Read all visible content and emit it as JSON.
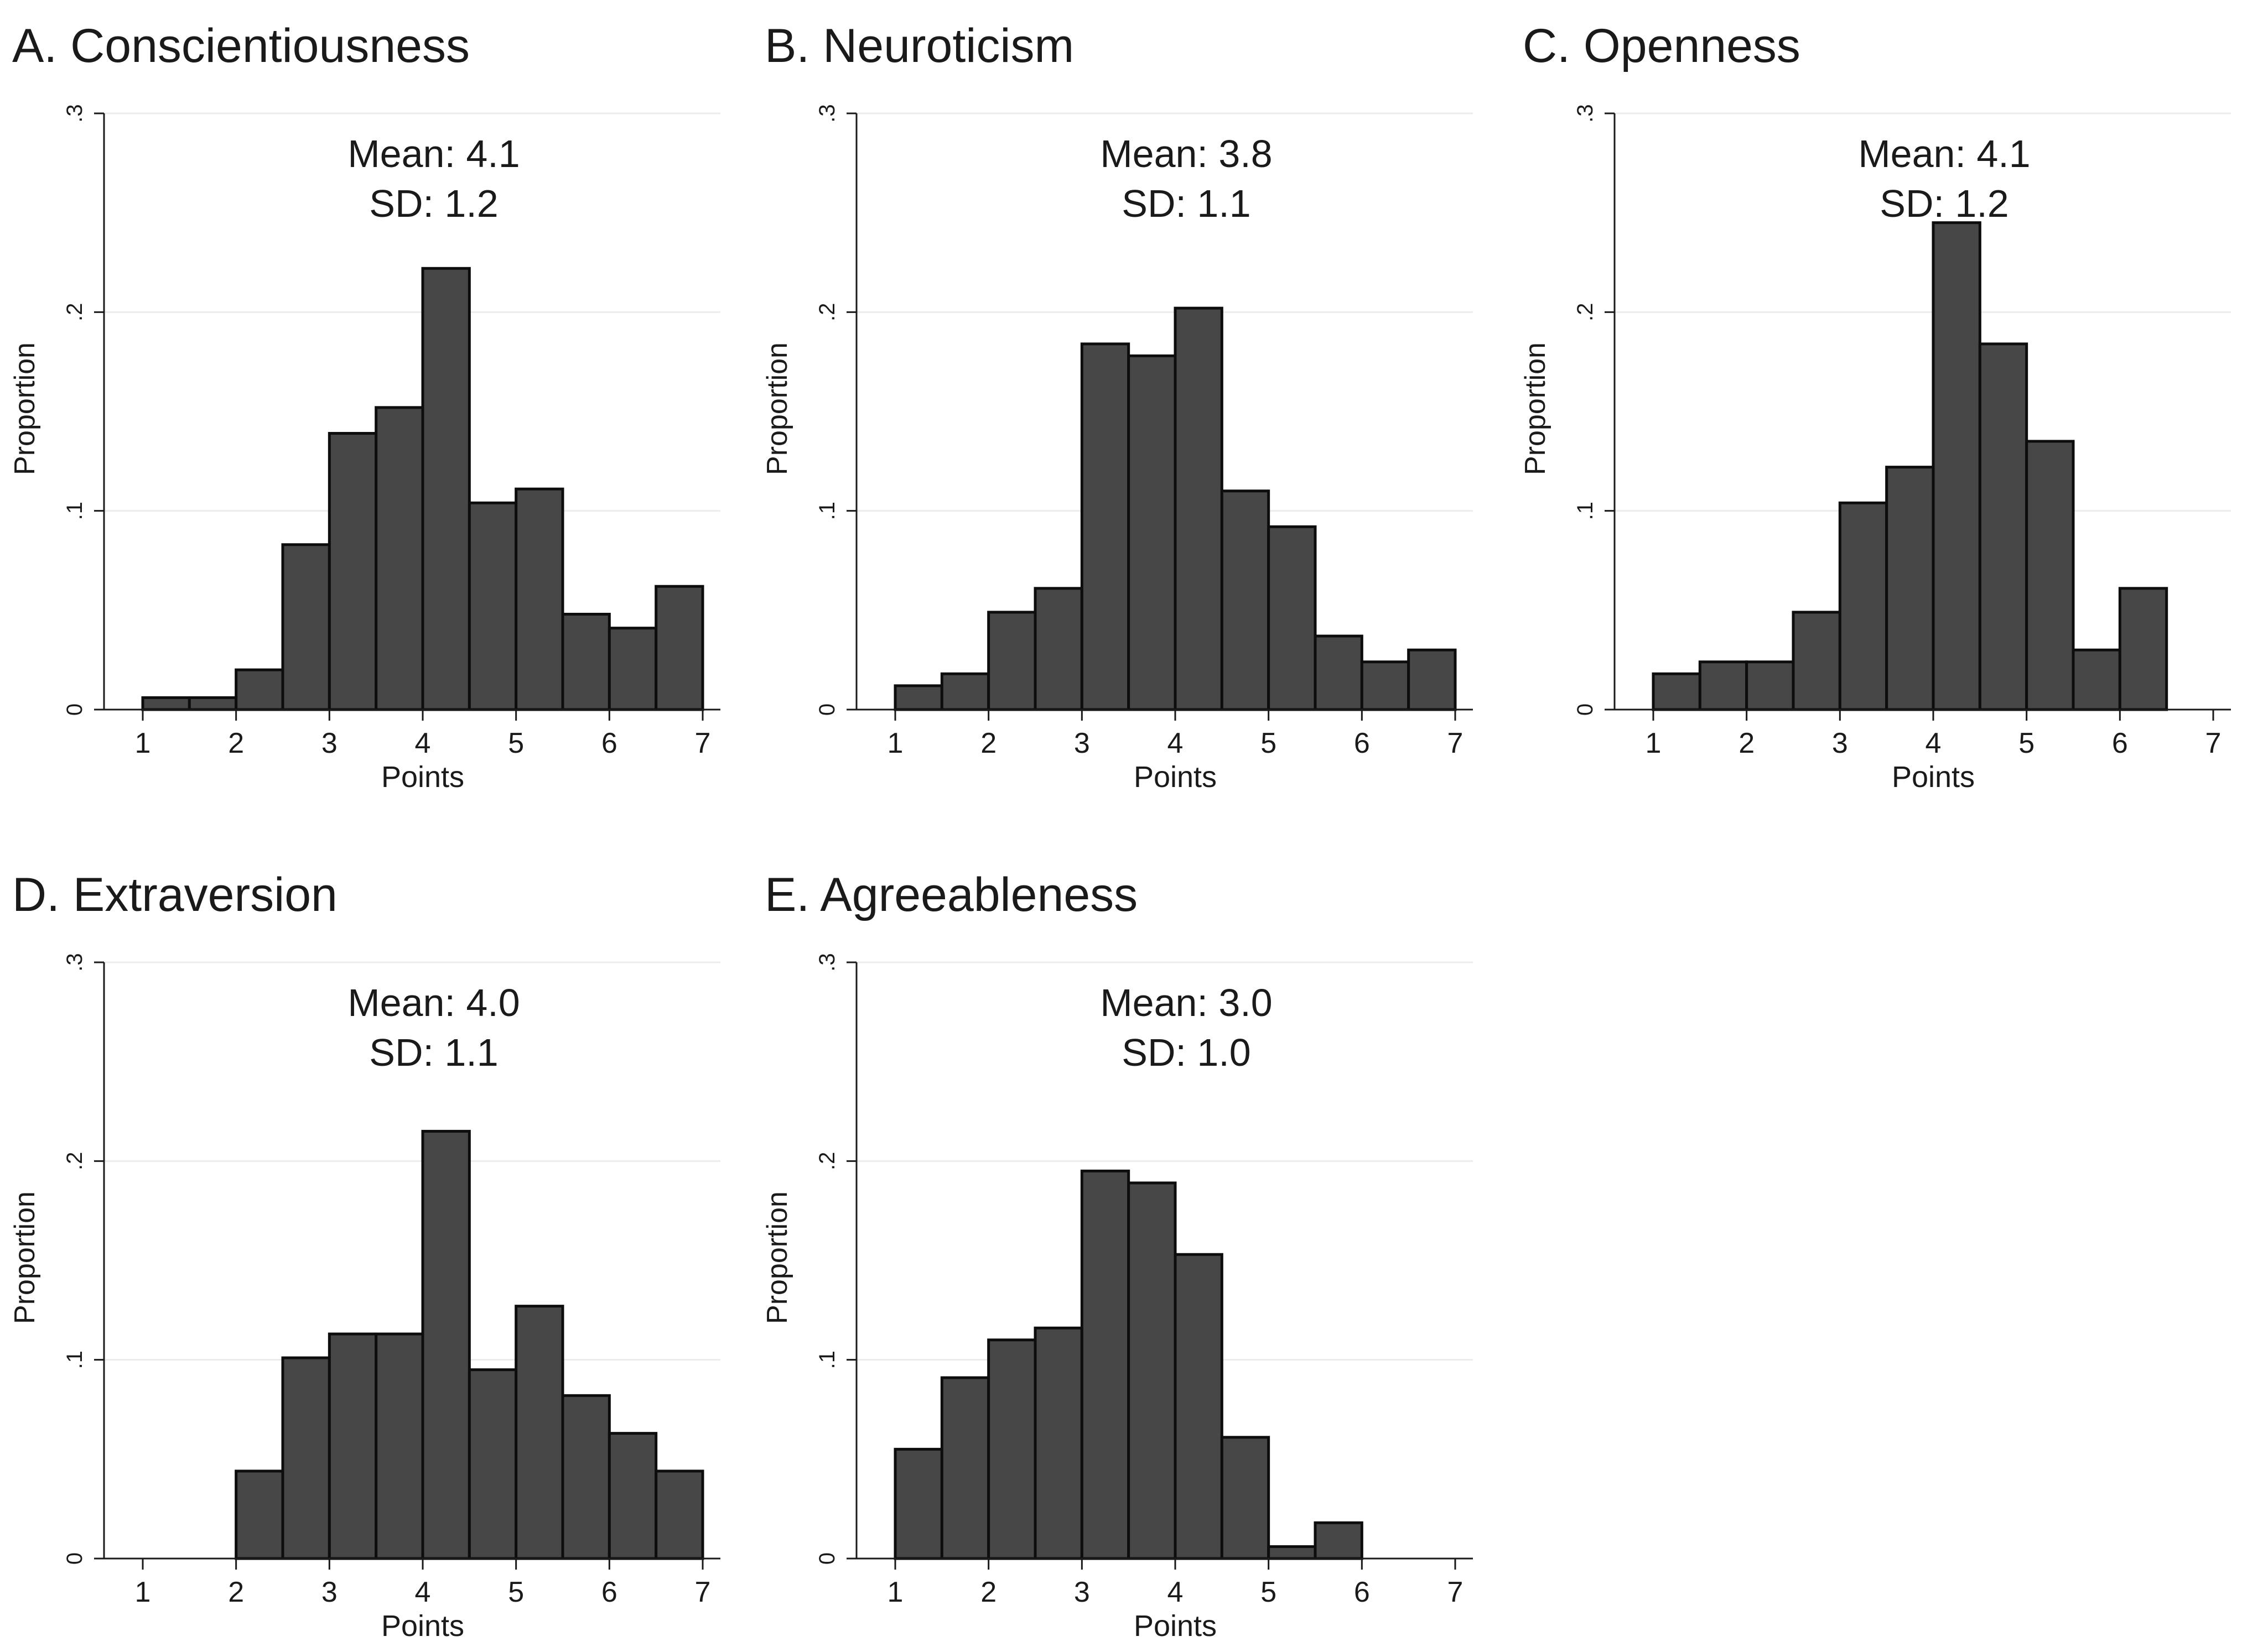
{
  "chart_data": [
    {
      "type": "bar",
      "title": "A. Conscientiousness",
      "stats": {
        "mean": "Mean: 4.1",
        "sd": "SD: 1.2"
      },
      "xlabel": "Points",
      "ylabel": "Proportion",
      "xlim": [
        1,
        7
      ],
      "ylim": [
        0,
        0.3
      ],
      "xticks": [
        "1",
        "2",
        "3",
        "4",
        "5",
        "6",
        "7"
      ],
      "yticks": [
        "0",
        ".1",
        ".2",
        ".3"
      ],
      "grid": true,
      "bin_edges": [
        1,
        1.5,
        2,
        2.5,
        3,
        3.5,
        4,
        4.5,
        5,
        5.5,
        6,
        6.5,
        7
      ],
      "values": [
        0.006,
        0.006,
        0.02,
        0.083,
        0.139,
        0.152,
        0.222,
        0.104,
        0.111,
        0.048,
        0.041,
        0.062
      ]
    },
    {
      "type": "bar",
      "title": "B. Neuroticism",
      "stats": {
        "mean": "Mean: 3.8",
        "sd": "SD: 1.1"
      },
      "xlabel": "Points",
      "ylabel": "Proportion",
      "xlim": [
        1,
        7
      ],
      "ylim": [
        0,
        0.3
      ],
      "xticks": [
        "1",
        "2",
        "3",
        "4",
        "5",
        "6",
        "7"
      ],
      "yticks": [
        "0",
        ".1",
        ".2",
        ".3"
      ],
      "grid": true,
      "bin_edges": [
        1,
        1.5,
        2,
        2.5,
        3,
        3.5,
        4,
        4.5,
        5,
        5.5,
        6,
        6.5,
        7
      ],
      "values": [
        0.012,
        0.018,
        0.049,
        0.061,
        0.184,
        0.178,
        0.202,
        0.11,
        0.092,
        0.037,
        0.024,
        0.03
      ]
    },
    {
      "type": "bar",
      "title": "C. Openness",
      "stats": {
        "mean": "Mean: 4.1",
        "sd": "SD: 1.2"
      },
      "xlabel": "Points",
      "ylabel": "Proportion",
      "xlim": [
        1,
        7
      ],
      "ylim": [
        0,
        0.3
      ],
      "xticks": [
        "1",
        "2",
        "3",
        "4",
        "5",
        "6",
        "7"
      ],
      "yticks": [
        "0",
        ".1",
        ".2",
        ".3"
      ],
      "grid": true,
      "bin_edges": [
        1,
        1.5,
        2,
        2.5,
        3,
        3.5,
        4,
        4.5,
        5,
        5.5,
        6,
        6.5
      ],
      "values": [
        0.018,
        0.024,
        0.024,
        0.049,
        0.104,
        0.122,
        0.245,
        0.184,
        0.135,
        0.03,
        0.061
      ]
    },
    {
      "type": "bar",
      "title": "D. Extraversion",
      "stats": {
        "mean": "Mean: 4.0",
        "sd": "SD: 1.1"
      },
      "xlabel": "Points",
      "ylabel": "Proportion",
      "xlim": [
        1,
        7
      ],
      "ylim": [
        0,
        0.3
      ],
      "xticks": [
        "1",
        "2",
        "3",
        "4",
        "5",
        "6",
        "7"
      ],
      "yticks": [
        "0",
        ".1",
        ".2",
        ".3"
      ],
      "grid": true,
      "bin_edges": [
        2,
        2.5,
        3,
        3.5,
        4,
        4.5,
        5,
        5.5,
        6,
        6.5,
        7
      ],
      "values": [
        0.044,
        0.101,
        0.113,
        0.113,
        0.215,
        0.095,
        0.127,
        0.082,
        0.063,
        0.044
      ]
    },
    {
      "type": "bar",
      "title": "E. Agreeableness",
      "stats": {
        "mean": "Mean: 3.0",
        "sd": "SD: 1.0"
      },
      "xlabel": "Points",
      "ylabel": "Proportion",
      "xlim": [
        1,
        7
      ],
      "ylim": [
        0,
        0.3
      ],
      "xticks": [
        "1",
        "2",
        "3",
        "4",
        "5",
        "6",
        "7"
      ],
      "yticks": [
        "0",
        ".1",
        ".2",
        ".3"
      ],
      "grid": true,
      "bin_edges": [
        1,
        1.5,
        2,
        2.5,
        3,
        3.5,
        4,
        4.5,
        5,
        5.5,
        6
      ],
      "values": [
        0.055,
        0.091,
        0.11,
        0.116,
        0.195,
        0.189,
        0.153,
        0.061,
        0.006,
        0.018
      ]
    }
  ]
}
